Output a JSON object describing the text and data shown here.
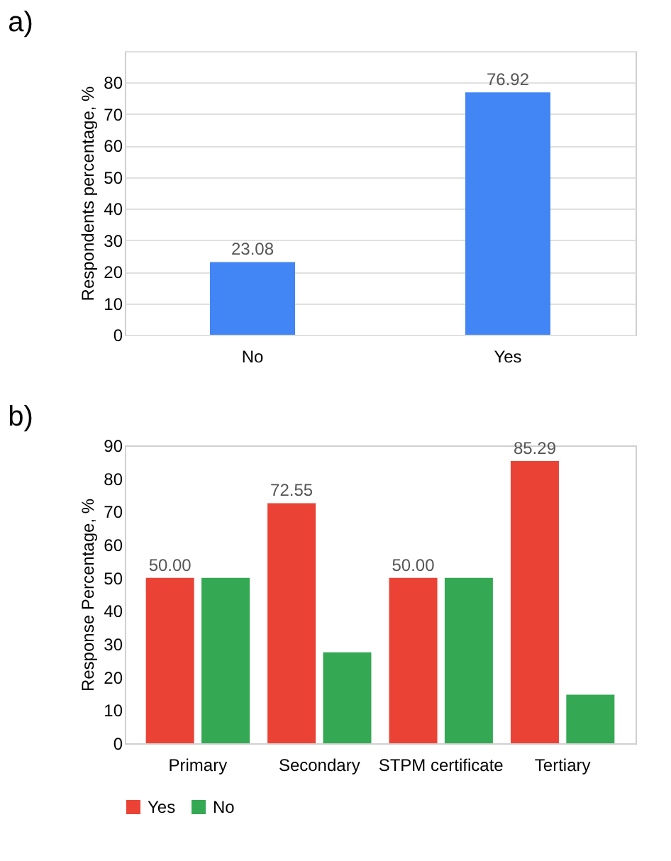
{
  "chart_data": [
    {
      "type": "bar",
      "title": "a)",
      "ylabel": "Respondents percentage, %",
      "categories": [
        "No",
        "Yes"
      ],
      "values": [
        23.08,
        76.92
      ],
      "color": "#4285f4",
      "ylim": [
        0,
        90
      ],
      "yticks": [
        0,
        10,
        20,
        30,
        40,
        50,
        60,
        70,
        80,
        {
          "value": 90,
          "label": null
        }
      ],
      "grid": "y",
      "data_labels": true
    },
    {
      "type": "bar",
      "title": "b)",
      "ylabel": "Response Percentage, %",
      "categories": [
        "Primary",
        "Secondary",
        "STPM certificate",
        "Tertiary"
      ],
      "ylim": [
        0,
        90
      ],
      "yticks": [
        0,
        10,
        20,
        30,
        40,
        50,
        60,
        70,
        80,
        90
      ],
      "grid": false,
      "legend": "bottom",
      "series": [
        {
          "name": "Yes",
          "color": "#ea4335",
          "values": [
            50.0,
            72.55,
            50.0,
            85.29
          ],
          "value_labels": [
            "50.00",
            "72.55",
            "50.00",
            "85.29"
          ]
        },
        {
          "name": "No",
          "color": "#34a853",
          "values": [
            50.0,
            27.5,
            50.0,
            14.7
          ],
          "value_labels": [
            null,
            null,
            null,
            null
          ]
        }
      ]
    }
  ]
}
